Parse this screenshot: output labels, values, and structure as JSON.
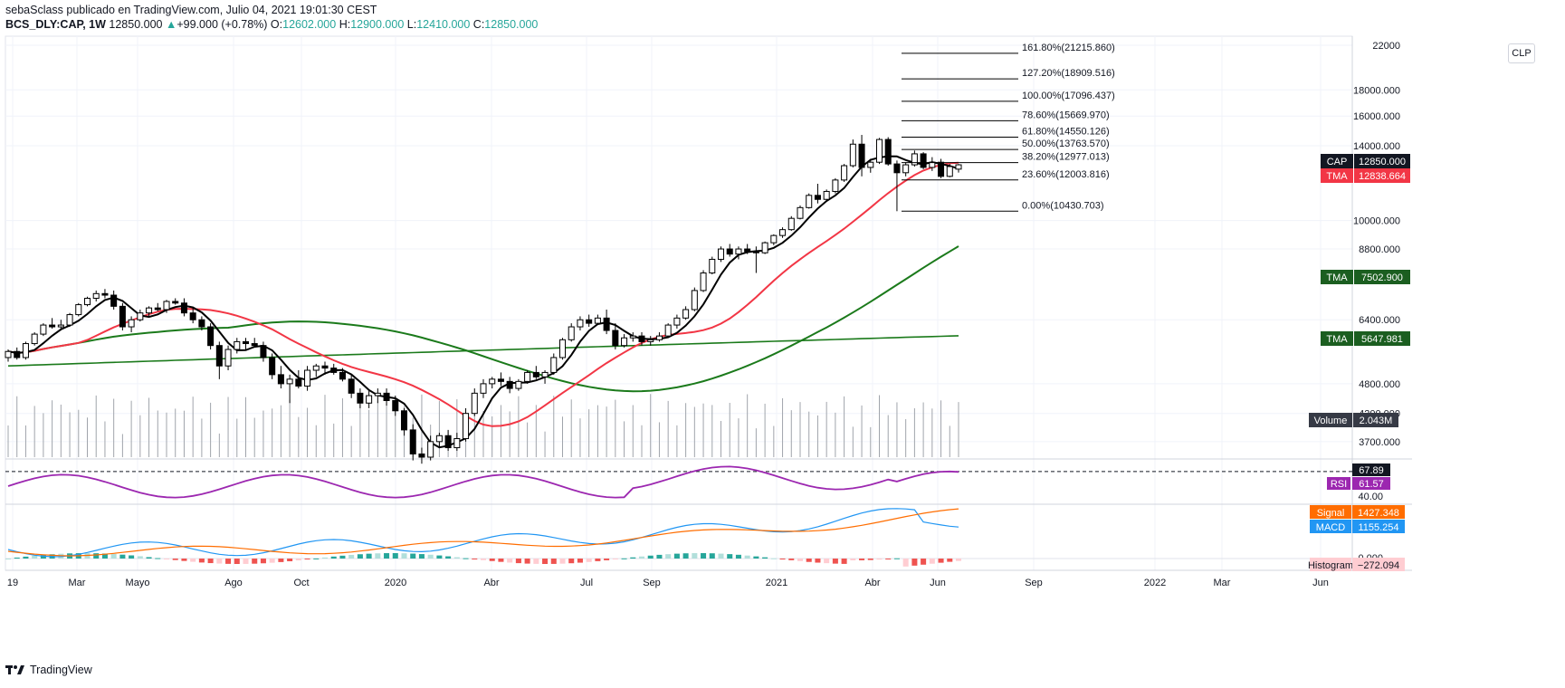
{
  "header": {
    "line1": "sebaSclass publicado en TradingView.com, Julio 04, 2021 19:01:30 CEST",
    "symbol": "BCS_DLY:CAP, 1W",
    "last": "12850.000",
    "change": "+99.000 (+0.78%)",
    "o_label": "O:",
    "o_val": "12602.000",
    "h_label": "H:",
    "h_val": "12900.000",
    "l_label": "L:",
    "l_val": "12410.000",
    "c_label": "C:",
    "c_val": "12850.000"
  },
  "clp_button": "CLP",
  "footer": {
    "brand": "TradingView",
    "logo_icon": "tradingview-logo-icon"
  },
  "colors": {
    "up": "#ffffff",
    "down": "#000000",
    "tma_short": "#000000",
    "tma_mid": "#f23645",
    "tma_long": "#1b7a1b",
    "rsi": "#9c27b0",
    "macd": "#2196f3",
    "signal": "#ff6d00",
    "hist_pos_strong": "#26a69a",
    "hist_pos_weak": "#b2dfdb",
    "hist_neg_strong": "#ef5350",
    "hist_neg_weak": "#ffcdd2"
  },
  "chart_data": {
    "type": "candlestick",
    "x": [
      "2019-01",
      "2019-03",
      "2019-05",
      "2019-08",
      "2019-10",
      "2020",
      "2020-04",
      "2020-07",
      "2020-09",
      "2021",
      "2021-04",
      "2021-06",
      "2021-09",
      "2022",
      "2022-03",
      "2022-06"
    ],
    "x_tick_labels": [
      "19",
      "Mar",
      "Mayo",
      "Ago",
      "Oct",
      "2020",
      "Abr",
      "Jul",
      "Sep",
      "2021",
      "Abr",
      "Jun",
      "Sep",
      "2022",
      "Mar",
      "Jun"
    ],
    "y_tick_labels": [
      "22000",
      "18000.000",
      "16000.000",
      "14000.000",
      "10000.000",
      "8800.000",
      "6400.000",
      "4800.000",
      "4200.000",
      "3700.000"
    ],
    "ylim": [
      3450,
      22000
    ],
    "price_scale": "log",
    "candles": [
      [
        5400,
        5600,
        5300,
        5550
      ],
      [
        5550,
        5650,
        5350,
        5400
      ],
      [
        5400,
        5800,
        5350,
        5750
      ],
      [
        5750,
        6050,
        5700,
        6000
      ],
      [
        6000,
        6300,
        5950,
        6250
      ],
      [
        6250,
        6450,
        6150,
        6200
      ],
      [
        6200,
        6400,
        6100,
        6250
      ],
      [
        6250,
        6600,
        6200,
        6550
      ],
      [
        6550,
        6900,
        6500,
        6850
      ],
      [
        6850,
        7100,
        6800,
        7050
      ],
      [
        7050,
        7300,
        6950,
        7200
      ],
      [
        7200,
        7350,
        7050,
        7150
      ],
      [
        7150,
        7300,
        6700,
        6800
      ],
      [
        6800,
        6900,
        6100,
        6200
      ],
      [
        6200,
        6500,
        6050,
        6400
      ],
      [
        6400,
        6700,
        6350,
        6600
      ],
      [
        6600,
        6800,
        6500,
        6750
      ],
      [
        6750,
        6900,
        6650,
        6700
      ],
      [
        6700,
        7000,
        6600,
        6950
      ],
      [
        6950,
        7050,
        6850,
        6900
      ],
      [
        6900,
        7050,
        6500,
        6600
      ],
      [
        6600,
        6750,
        6300,
        6400
      ],
      [
        6400,
        6500,
        6100,
        6200
      ],
      [
        6200,
        6300,
        5600,
        5700
      ],
      [
        5700,
        5800,
        4900,
        5200
      ],
      [
        5200,
        5700,
        5100,
        5600
      ],
      [
        5600,
        5900,
        5500,
        5800
      ],
      [
        5800,
        5900,
        5600,
        5750
      ],
      [
        5750,
        5900,
        5650,
        5700
      ],
      [
        5700,
        5800,
        5300,
        5400
      ],
      [
        5400,
        5500,
        4900,
        5000
      ],
      [
        5000,
        5200,
        4700,
        4800
      ],
      [
        4800,
        5000,
        4400,
        4900
      ],
      [
        4900,
        5100,
        4700,
        4750
      ],
      [
        4750,
        5200,
        4650,
        5100
      ],
      [
        5100,
        5250,
        4950,
        5200
      ],
      [
        5200,
        5300,
        5000,
        5150
      ],
      [
        5150,
        5250,
        5000,
        5050
      ],
      [
        5050,
        5150,
        4850,
        4900
      ],
      [
        4900,
        5000,
        4500,
        4600
      ],
      [
        4600,
        4700,
        4300,
        4400
      ],
      [
        4400,
        4650,
        4300,
        4550
      ],
      [
        4550,
        4700,
        4400,
        4600
      ],
      [
        4600,
        4700,
        4350,
        4450
      ],
      [
        4450,
        4550,
        4150,
        4250
      ],
      [
        4250,
        4300,
        3800,
        3900
      ],
      [
        3900,
        4000,
        3400,
        3500
      ],
      [
        3500,
        3600,
        3350,
        3450
      ],
      [
        3450,
        3800,
        3400,
        3700
      ],
      [
        3700,
        3850,
        3600,
        3800
      ],
      [
        3800,
        3900,
        3550,
        3600
      ],
      [
        3600,
        3850,
        3550,
        3750
      ],
      [
        3750,
        4300,
        3700,
        4200
      ],
      [
        4200,
        4700,
        4150,
        4600
      ],
      [
        4600,
        4900,
        4500,
        4800
      ],
      [
        4800,
        4950,
        4700,
        4900
      ],
      [
        4900,
        5050,
        4750,
        4850
      ],
      [
        4850,
        4950,
        4600,
        4700
      ],
      [
        4700,
        4900,
        4650,
        4850
      ],
      [
        4850,
        5100,
        4800,
        5050
      ],
      [
        5050,
        5200,
        4900,
        4950
      ],
      [
        4950,
        5100,
        4800,
        5050
      ],
      [
        5050,
        5500,
        5000,
        5400
      ],
      [
        5400,
        5900,
        5350,
        5850
      ],
      [
        5850,
        6300,
        5800,
        6200
      ],
      [
        6200,
        6500,
        6100,
        6400
      ],
      [
        6400,
        6550,
        6200,
        6300
      ],
      [
        6300,
        6550,
        6250,
        6450
      ],
      [
        6450,
        6700,
        6000,
        6100
      ],
      [
        6100,
        6300,
        5600,
        5700
      ],
      [
        5700,
        6000,
        5650,
        5900
      ],
      [
        5900,
        6050,
        5800,
        5950
      ],
      [
        5950,
        6050,
        5700,
        5800
      ],
      [
        5800,
        5950,
        5700,
        5850
      ],
      [
        5850,
        6050,
        5800,
        5950
      ],
      [
        5950,
        6300,
        5900,
        6250
      ],
      [
        6250,
        6550,
        6150,
        6450
      ],
      [
        6450,
        6800,
        6400,
        6700
      ],
      [
        6700,
        7400,
        6650,
        7300
      ],
      [
        7300,
        8000,
        7250,
        7900
      ],
      [
        7900,
        8500,
        7850,
        8400
      ],
      [
        8400,
        8900,
        8300,
        8800
      ],
      [
        8800,
        9000,
        8500,
        8600
      ],
      [
        8600,
        8900,
        8400,
        8800
      ],
      [
        8800,
        9000,
        8600,
        8700
      ],
      [
        8700,
        8900,
        7900,
        8650
      ],
      [
        8650,
        9100,
        8600,
        9050
      ],
      [
        9050,
        9400,
        8950,
        9350
      ],
      [
        9350,
        9700,
        9250,
        9600
      ],
      [
        9600,
        10200,
        9550,
        10100
      ],
      [
        10100,
        10700,
        10050,
        10600
      ],
      [
        10600,
        11300,
        10550,
        11200
      ],
      [
        11200,
        11800,
        10800,
        11000
      ],
      [
        11000,
        11500,
        10900,
        11400
      ],
      [
        11400,
        12100,
        11300,
        12000
      ],
      [
        12000,
        12900,
        11900,
        12800
      ],
      [
        12800,
        14400,
        12700,
        14100
      ],
      [
        14100,
        14700,
        12200,
        12700
      ],
      [
        12700,
        13200,
        12400,
        13000
      ],
      [
        13000,
        14500,
        12900,
        14400
      ],
      [
        14400,
        14550,
        12800,
        12900
      ],
      [
        12900,
        13100,
        10430,
        12400
      ],
      [
        12400,
        13000,
        12200,
        12850
      ],
      [
        12850,
        13700,
        12750,
        13500
      ],
      [
        13500,
        13600,
        12600,
        12700
      ],
      [
        12700,
        13300,
        12500,
        13000
      ],
      [
        13000,
        13200,
        12100,
        12200
      ],
      [
        12200,
        12900,
        12150,
        12750
      ],
      [
        12602,
        12900,
        12410,
        12850
      ]
    ],
    "tma": [
      {
        "name": "TMA",
        "value_label": "12838.664",
        "color": "#f23645"
      },
      {
        "name": "TMA",
        "value_label": "7502.900",
        "color": "#1b7a1b"
      },
      {
        "name": "TMA",
        "value_label": "5647.981",
        "color": "#1b7a1b"
      }
    ],
    "last_price_label": {
      "name": "CAP",
      "value": "12850.000"
    },
    "fibonacci": [
      {
        "level": "161.80%",
        "value": "21215.860"
      },
      {
        "level": "127.20%",
        "value": "18909.516"
      },
      {
        "level": "100.00%",
        "value": "17096.437"
      },
      {
        "level": "78.60%",
        "value": "15669.970"
      },
      {
        "level": "61.80%",
        "value": "14550.126"
      },
      {
        "level": "50.00%",
        "value": "13763.570"
      },
      {
        "level": "38.20%",
        "value": "12977.013"
      },
      {
        "level": "23.60%",
        "value": "12003.816"
      },
      {
        "level": "0.00%",
        "value": "10430.703"
      }
    ],
    "volume": {
      "name": "Volume",
      "value": "2.043M"
    },
    "rsi": {
      "name": "RSI",
      "value": "61.57",
      "upper_label": "67.89",
      "lower_label": "40.00",
      "range": [
        30,
        80
      ]
    },
    "macd": {
      "macd_name": "MACD",
      "macd_value": "1155.254",
      "signal_name": "Signal",
      "signal_value": "1427.348",
      "hist_name": "Histogram",
      "hist_value": "−272.094",
      "zero_label": "0.000"
    }
  }
}
